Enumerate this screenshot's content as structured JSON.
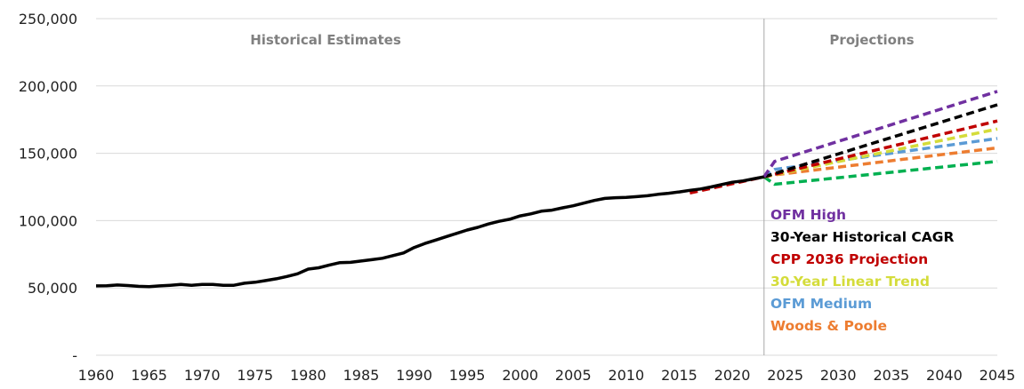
{
  "chart_data": {
    "type": "line",
    "title": "",
    "xlabel": "",
    "ylabel": "",
    "xlim": [
      1960,
      2045
    ],
    "ylim": [
      0,
      250000
    ],
    "grid": "horizontal",
    "x_ticks": [
      "1960",
      "1965",
      "1970",
      "1975",
      "1980",
      "1985",
      "1990",
      "1995",
      "2000",
      "2005",
      "2010",
      "2015",
      "2020",
      "2025",
      "2030",
      "2035",
      "2040",
      "2045"
    ],
    "y_ticks": [
      {
        "value": 0,
        "label": "-"
      },
      {
        "value": 50000,
        "label": "50,000"
      },
      {
        "value": 100000,
        "label": "100,000"
      },
      {
        "value": 150000,
        "label": "150,000"
      },
      {
        "value": 200000,
        "label": "200,000"
      },
      {
        "value": 250000,
        "label": "250,000"
      }
    ],
    "sections": {
      "historical_label": "Historical Estimates",
      "projections_label": "Projections",
      "divider_year": 2023
    },
    "historical": {
      "color": "#000000",
      "x": [
        1960,
        1961,
        1962,
        1963,
        1964,
        1965,
        1966,
        1967,
        1968,
        1969,
        1970,
        1971,
        1972,
        1973,
        1974,
        1975,
        1976,
        1977,
        1978,
        1979,
        1980,
        1981,
        1982,
        1983,
        1984,
        1985,
        1986,
        1987,
        1988,
        1989,
        1990,
        1991,
        1992,
        1993,
        1994,
        1995,
        1996,
        1997,
        1998,
        1999,
        2000,
        2001,
        2002,
        2003,
        2004,
        2005,
        2006,
        2007,
        2008,
        2009,
        2010,
        2011,
        2012,
        2013,
        2014,
        2015,
        2016,
        2017,
        2018,
        2019,
        2020,
        2021,
        2022,
        2023
      ],
      "y": [
        51500,
        51600,
        52200,
        51800,
        51200,
        51000,
        51500,
        52000,
        52600,
        52000,
        52600,
        52600,
        52000,
        52000,
        53500,
        54200,
        55500,
        56800,
        58500,
        60500,
        64000,
        65000,
        67000,
        68800,
        69000,
        70000,
        71000,
        72000,
        74000,
        76000,
        80000,
        83000,
        85500,
        88000,
        90500,
        93000,
        95000,
        97500,
        99500,
        101000,
        103500,
        105000,
        107000,
        107800,
        109500,
        111000,
        113000,
        115000,
        116500,
        117000,
        117200,
        117800,
        118500,
        119500,
        120300,
        121300,
        122500,
        123500,
        125000,
        126800,
        128500,
        129500,
        131000,
        132500
      ]
    },
    "series": [
      {
        "name": "OFM High",
        "color": "#7030A0",
        "x": [
          2023,
          2024,
          2045
        ],
        "y": [
          132500,
          144000,
          196000
        ]
      },
      {
        "name": "30-Year Historical CAGR",
        "color": "#000000",
        "x": [
          2023,
          2045
        ],
        "y": [
          132500,
          186000
        ]
      },
      {
        "name": "CPP 2036 Projection",
        "color": "#C00000",
        "x": [
          2016,
          2023,
          2045
        ],
        "y": [
          120500,
          132500,
          174000
        ]
      },
      {
        "name": "30-Year Linear Trend",
        "color": "#D4DC3A",
        "x": [
          2023,
          2045
        ],
        "y": [
          132500,
          168000
        ]
      },
      {
        "name": "OFM Medium",
        "color": "#5B9BD5",
        "x": [
          2023,
          2024,
          2045
        ],
        "y": [
          132500,
          138000,
          161000
        ]
      },
      {
        "name": "Woods & Poole",
        "color": "#ED7D31",
        "x": [
          2023,
          2024,
          2045
        ],
        "y": [
          132500,
          134000,
          154000
        ]
      },
      {
        "name": "",
        "color": "#00B050",
        "x": [
          2023,
          2024,
          2045
        ],
        "y": [
          132500,
          127000,
          144000
        ]
      }
    ]
  }
}
